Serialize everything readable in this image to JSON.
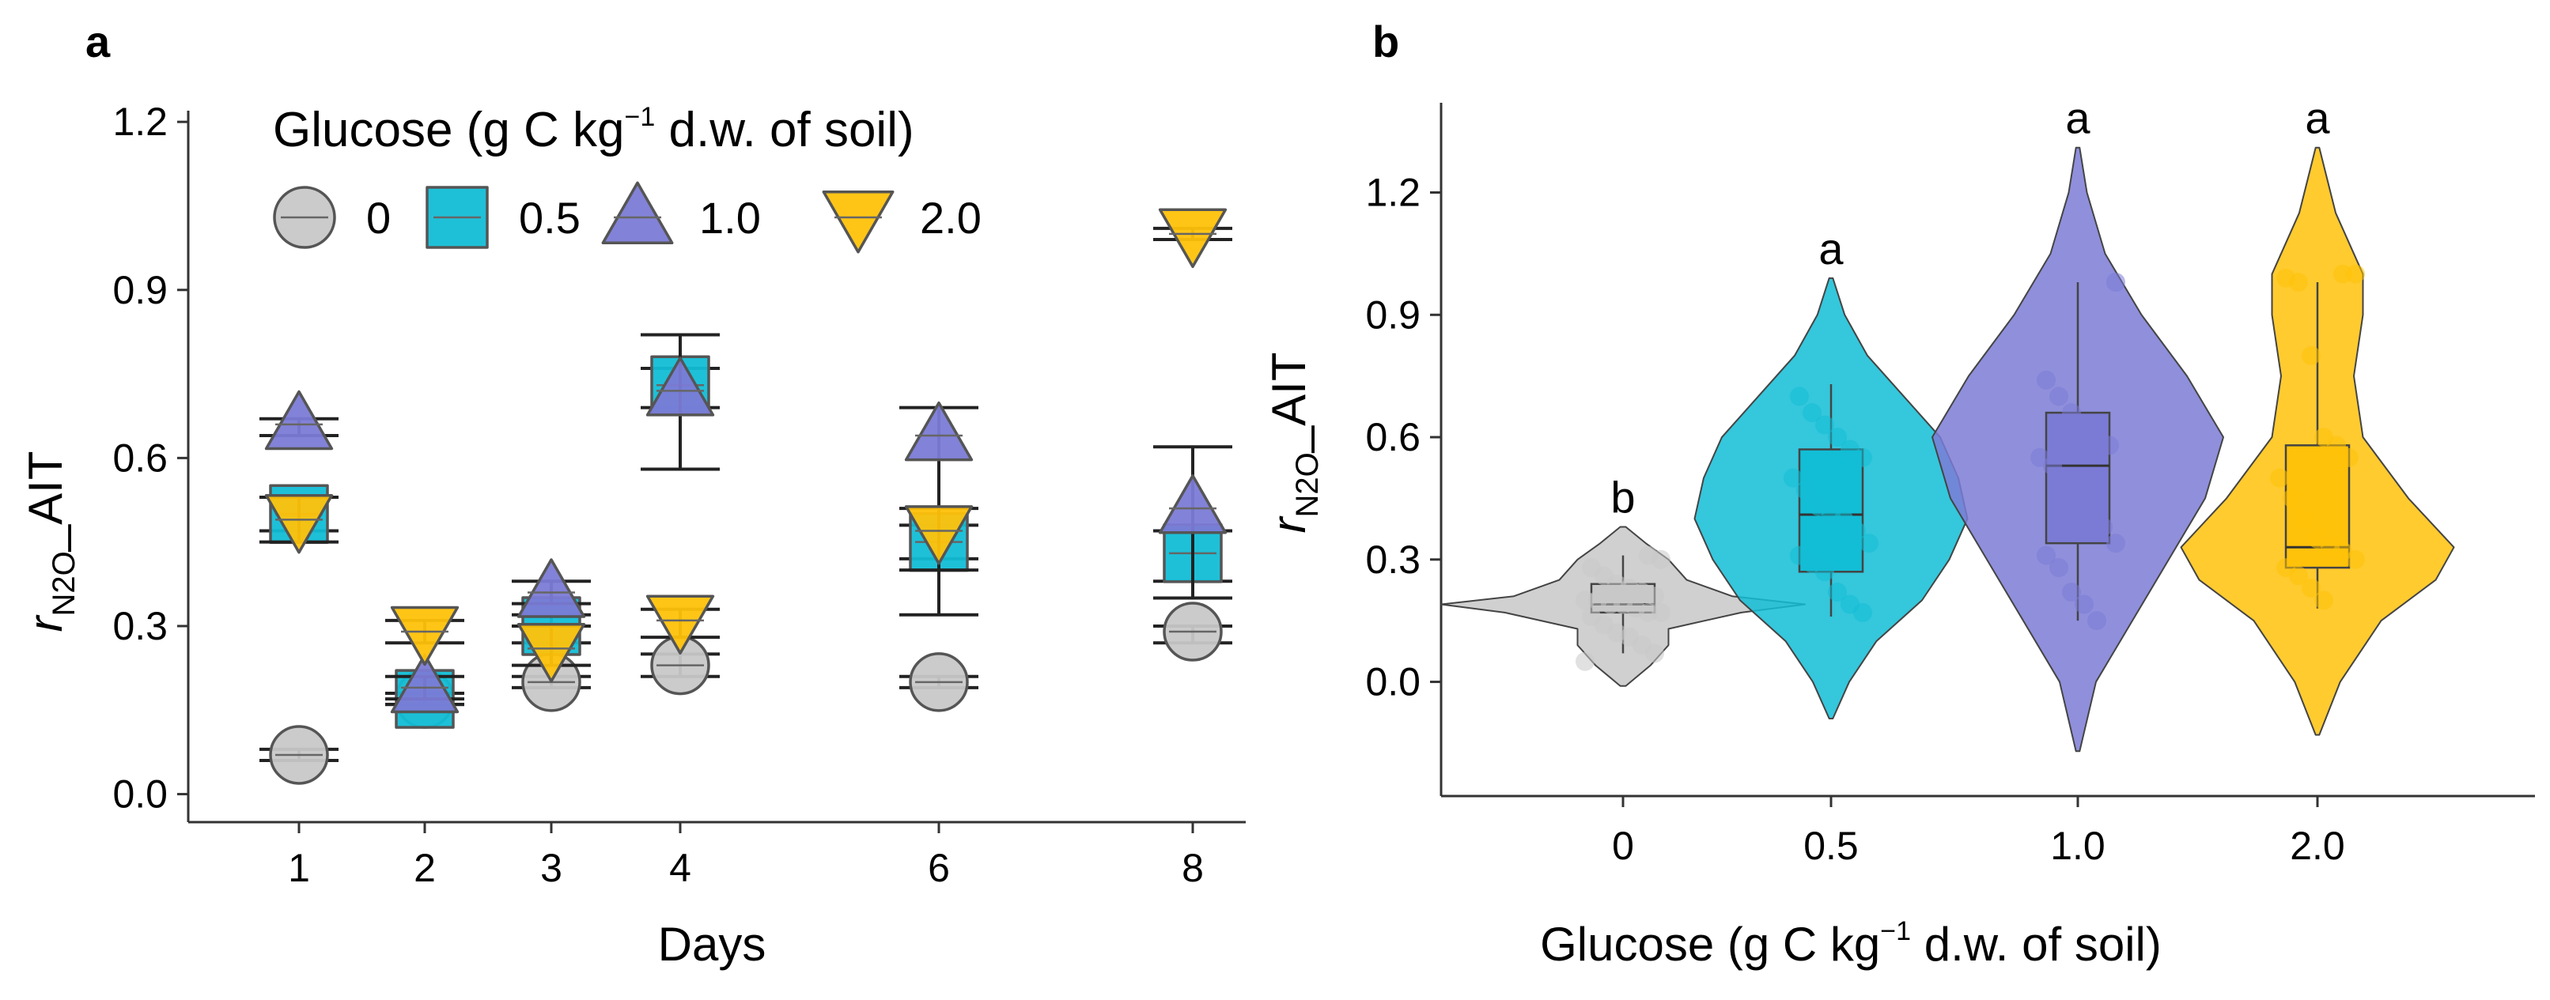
{
  "chart_data": [
    {
      "panel_label": "a",
      "type": "scatter",
      "xlabel": "Days",
      "ylabel_main": "r",
      "ylabel_sub": "N2O",
      "ylabel_suffix": "_AIT",
      "ylim": [
        -0.05,
        1.22
      ],
      "yticks": [
        0.0,
        0.3,
        0.6,
        0.9,
        1.2
      ],
      "ytick_labels": [
        "0.0",
        "0.3",
        "0.6",
        "0.9",
        "1.2"
      ],
      "x": [
        1,
        2,
        3,
        4,
        6,
        8
      ],
      "x_labels": [
        "1",
        "2",
        "3",
        "4",
        "6",
        "8"
      ],
      "legend": {
        "title_pre": "Glucose (g C kg",
        "title_sup": "−1",
        "title_post": " d.w. of soil)",
        "entries": [
          "0",
          "0.5",
          "1.0",
          "2.0"
        ]
      },
      "series": [
        {
          "name": "0",
          "shape": "circle",
          "color": "#c8c8c8",
          "values": [
            0.07,
            0.17,
            0.2,
            0.23,
            0.2,
            0.29
          ],
          "err_lo": [
            0.06,
            0.16,
            0.19,
            0.21,
            0.19,
            0.27
          ],
          "err_hi": [
            0.08,
            0.18,
            0.21,
            0.25,
            0.21,
            0.3
          ]
        },
        {
          "name": "0.5",
          "shape": "square",
          "color": "#12bdd6",
          "values": [
            0.5,
            0.17,
            0.3,
            0.73,
            0.45,
            0.43
          ],
          "err_lo": [
            0.47,
            0.16,
            0.27,
            0.69,
            0.42,
            0.38
          ],
          "err_hi": [
            0.53,
            0.18,
            0.32,
            0.76,
            0.48,
            0.47
          ]
        },
        {
          "name": "1.0",
          "shape": "triangle-up",
          "color": "#7b7bd6",
          "values": [
            0.66,
            0.19,
            0.36,
            0.72,
            0.64,
            0.51
          ],
          "err_lo": [
            0.64,
            0.17,
            0.34,
            0.58,
            0.32,
            0.35
          ],
          "err_hi": [
            0.67,
            0.21,
            0.38,
            0.82,
            0.69,
            0.62
          ]
        },
        {
          "name": "2.0",
          "shape": "triangle-down",
          "color": "#ffc20a",
          "values": [
            0.49,
            0.29,
            0.26,
            0.31,
            0.47,
            1.0
          ],
          "err_lo": [
            0.45,
            0.27,
            0.23,
            0.28,
            0.4,
            0.99
          ],
          "err_hi": [
            0.53,
            0.31,
            0.3,
            0.33,
            0.51,
            1.01
          ]
        }
      ]
    },
    {
      "panel_label": "b",
      "type": "violin",
      "xlabel_pre": "Glucose (g C kg",
      "xlabel_sup": "−1",
      "xlabel_post": " d.w. of soil)",
      "ylabel_main": "r",
      "ylabel_sub": "N2O",
      "ylabel_suffix": "_AIT",
      "ylim": [
        -0.28,
        1.42
      ],
      "yticks": [
        0.0,
        0.3,
        0.6,
        0.9,
        1.2
      ],
      "ytick_labels": [
        "0.0",
        "0.3",
        "0.6",
        "0.9",
        "1.2"
      ],
      "categories": [
        "0",
        "0.5",
        "1.0",
        "2.0"
      ],
      "series": [
        {
          "name": "0",
          "color": "#c8c8c8",
          "significance": "b",
          "box": {
            "q1": 0.17,
            "median": 0.19,
            "q3": 0.24,
            "whisker_lo": 0.07,
            "whisker_hi": 0.31
          },
          "violin_range": [
            -0.01,
            0.38
          ],
          "violin_profile": [
            [
              -0.01,
              0.003
            ],
            [
              0.04,
              0.03
            ],
            [
              0.09,
              0.05
            ],
            [
              0.13,
              0.05
            ],
            [
              0.17,
              0.13
            ],
            [
              0.19,
              0.2
            ],
            [
              0.21,
              0.12
            ],
            [
              0.25,
              0.07
            ],
            [
              0.3,
              0.05
            ],
            [
              0.34,
              0.025
            ],
            [
              0.38,
              0.003
            ]
          ],
          "points": [
            0.05,
            0.07,
            0.09,
            0.11,
            0.12,
            0.14,
            0.16,
            0.17,
            0.17,
            0.18,
            0.19,
            0.19,
            0.2,
            0.2,
            0.21,
            0.22,
            0.23,
            0.24,
            0.26,
            0.28,
            0.3,
            0.31
          ]
        },
        {
          "name": "0.5",
          "color": "#12bdd6",
          "significance": "a",
          "box": {
            "q1": 0.27,
            "median": 0.41,
            "q3": 0.57,
            "whisker_lo": 0.16,
            "whisker_hi": 0.73
          },
          "violin_range": [
            -0.09,
            0.99
          ],
          "violin_profile": [
            [
              -0.09,
              0.002
            ],
            [
              0.0,
              0.02
            ],
            [
              0.1,
              0.05
            ],
            [
              0.2,
              0.1
            ],
            [
              0.3,
              0.13
            ],
            [
              0.4,
              0.15
            ],
            [
              0.5,
              0.14
            ],
            [
              0.6,
              0.12
            ],
            [
              0.7,
              0.08
            ],
            [
              0.8,
              0.04
            ],
            [
              0.9,
              0.015
            ],
            [
              0.99,
              0.002
            ]
          ],
          "points": [
            0.17,
            0.19,
            0.22,
            0.27,
            0.29,
            0.31,
            0.34,
            0.37,
            0.4,
            0.41,
            0.43,
            0.47,
            0.5,
            0.55,
            0.57,
            0.6,
            0.63,
            0.66,
            0.7
          ]
        },
        {
          "name": "1.0",
          "color": "#7b7bd6",
          "significance": "a",
          "box": {
            "q1": 0.34,
            "median": 0.53,
            "q3": 0.66,
            "whisker_lo": 0.15,
            "whisker_hi": 0.98
          },
          "violin_range": [
            -0.17,
            1.31
          ],
          "violin_profile": [
            [
              -0.17,
              0.002
            ],
            [
              0.0,
              0.02
            ],
            [
              0.15,
              0.06
            ],
            [
              0.3,
              0.1
            ],
            [
              0.45,
              0.14
            ],
            [
              0.6,
              0.16
            ],
            [
              0.75,
              0.12
            ],
            [
              0.9,
              0.07
            ],
            [
              1.05,
              0.03
            ],
            [
              1.2,
              0.01
            ],
            [
              1.31,
              0.002
            ]
          ],
          "points": [
            0.15,
            0.19,
            0.22,
            0.28,
            0.31,
            0.34,
            0.38,
            0.42,
            0.46,
            0.5,
            0.53,
            0.55,
            0.58,
            0.61,
            0.63,
            0.66,
            0.7,
            0.74,
            0.98
          ]
        },
        {
          "name": "2.0",
          "color": "#ffc20a",
          "significance": "a",
          "box": {
            "q1": 0.28,
            "median": 0.33,
            "q3": 0.58,
            "whisker_lo": 0.18,
            "whisker_hi": 0.98
          },
          "violin_range": [
            -0.13,
            1.31
          ],
          "violin_profile": [
            [
              -0.13,
              0.002
            ],
            [
              0.0,
              0.025
            ],
            [
              0.15,
              0.07
            ],
            [
              0.25,
              0.13
            ],
            [
              0.33,
              0.15
            ],
            [
              0.45,
              0.1
            ],
            [
              0.6,
              0.05
            ],
            [
              0.75,
              0.04
            ],
            [
              0.9,
              0.05
            ],
            [
              1.0,
              0.05
            ],
            [
              1.15,
              0.02
            ],
            [
              1.31,
              0.002
            ]
          ],
          "points": [
            0.2,
            0.23,
            0.26,
            0.28,
            0.3,
            0.32,
            0.33,
            0.35,
            0.4,
            0.45,
            0.5,
            0.55,
            0.58,
            0.6,
            0.8,
            0.98,
            0.99,
            1.0,
            1.0
          ]
        }
      ]
    }
  ]
}
